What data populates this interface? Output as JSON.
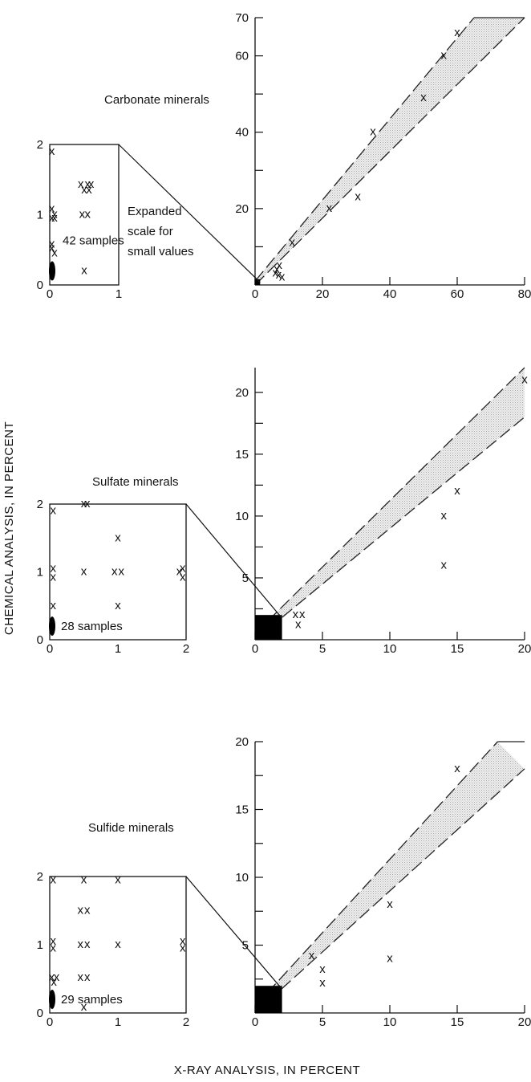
{
  "figure": {
    "xlabel": "X-RAY ANALYSIS, IN PERCENT",
    "ylabel": "CHEMICAL ANALYSIS, IN PERCENT"
  },
  "panels": [
    {
      "title": "Carbonate minerals",
      "expanded_note": [
        "Expanded",
        "scale for",
        "small values"
      ]
    },
    {
      "title": "Sulfate minerals"
    },
    {
      "title": "Sulfide minerals"
    }
  ],
  "chart_data": [
    {
      "type": "scatter",
      "title": "Carbonate minerals",
      "main": {
        "xlim": [
          0,
          80
        ],
        "ylim": [
          0,
          70
        ],
        "xticks": [
          0,
          20,
          40,
          60,
          80
        ],
        "yticks": [
          20,
          40,
          60
        ],
        "ylabels": [
          20,
          40,
          60,
          70
        ],
        "band_upper": [
          [
            0,
            1
          ],
          [
            65,
            70
          ]
        ],
        "band_lower": [
          [
            0,
            0
          ],
          [
            80,
            70
          ]
        ],
        "solid_region": [
          0,
          1.5
        ],
        "points": [
          [
            6,
            3
          ],
          [
            7,
            2.5
          ],
          [
            8,
            2
          ],
          [
            6.5,
            4
          ],
          [
            7.2,
            5
          ],
          [
            11,
            11
          ],
          [
            22,
            20
          ],
          [
            30.5,
            23
          ],
          [
            35,
            40
          ],
          [
            50,
            49
          ],
          [
            56,
            60
          ],
          [
            60,
            66
          ]
        ]
      },
      "inset": {
        "xlim": [
          0,
          1
        ],
        "ylim": [
          0,
          2
        ],
        "xticks": [
          0,
          1
        ],
        "yticks": [
          0,
          1,
          2
        ],
        "samples_label": "42 samples",
        "points": [
          [
            0.03,
            1.9
          ],
          [
            0.03,
            1.08
          ],
          [
            0.07,
            1.0
          ],
          [
            0.03,
            0.95
          ],
          [
            0.07,
            0.95
          ],
          [
            0.03,
            0.58
          ],
          [
            0.03,
            0.52
          ],
          [
            0.07,
            0.45
          ],
          [
            0.45,
            1.43
          ],
          [
            0.55,
            1.43
          ],
          [
            0.6,
            1.43
          ],
          [
            0.5,
            1.35
          ],
          [
            0.57,
            1.35
          ],
          [
            0.47,
            1.0
          ],
          [
            0.55,
            1.0
          ],
          [
            0.5,
            0.2
          ]
        ]
      }
    },
    {
      "type": "scatter",
      "title": "Sulfate minerals",
      "main": {
        "xlim": [
          0,
          20
        ],
        "ylim": [
          0,
          22
        ],
        "xticks": [
          0,
          5,
          10,
          15,
          20
        ],
        "yticks": [
          5,
          10,
          15,
          20
        ],
        "band_upper": [
          [
            0,
            0.5
          ],
          [
            20,
            22
          ]
        ],
        "band_lower": [
          [
            0,
            0
          ],
          [
            20,
            18
          ]
        ],
        "solid_region": [
          0,
          2
        ],
        "points": [
          [
            3,
            2
          ],
          [
            3.5,
            2
          ],
          [
            3.2,
            1.2
          ],
          [
            14,
            10
          ],
          [
            14,
            6
          ],
          [
            15,
            12
          ],
          [
            20,
            21
          ]
        ]
      },
      "inset": {
        "xlim": [
          0,
          2
        ],
        "ylim": [
          0,
          2
        ],
        "xticks": [
          0,
          1,
          2
        ],
        "yticks": [
          0,
          1,
          2
        ],
        "samples_label": "28 samples",
        "points": [
          [
            0.05,
            1.9
          ],
          [
            0.5,
            2.0
          ],
          [
            0.55,
            2.0
          ],
          [
            1.0,
            1.5
          ],
          [
            0.05,
            1.05
          ],
          [
            0.05,
            0.92
          ],
          [
            0.5,
            1.0
          ],
          [
            0.95,
            1.0
          ],
          [
            1.05,
            1.0
          ],
          [
            1.9,
            1.0
          ],
          [
            1.95,
            1.05
          ],
          [
            1.95,
            0.92
          ],
          [
            0.05,
            0.5
          ],
          [
            1.0,
            0.5
          ]
        ]
      }
    },
    {
      "type": "scatter",
      "title": "Sulfide minerals",
      "main": {
        "xlim": [
          0,
          20
        ],
        "ylim": [
          0,
          20
        ],
        "xticks": [
          0,
          5,
          10,
          15,
          20
        ],
        "yticks": [
          5,
          10,
          15,
          20
        ],
        "band_upper": [
          [
            0,
            0.5
          ],
          [
            18,
            20
          ]
        ],
        "band_lower": [
          [
            0,
            0
          ],
          [
            20,
            18
          ]
        ],
        "solid_region": [
          0,
          2
        ],
        "points": [
          [
            4.2,
            4.2
          ],
          [
            5,
            3.2
          ],
          [
            5,
            2.2
          ],
          [
            10,
            8
          ],
          [
            10,
            4
          ],
          [
            15,
            18
          ]
        ]
      },
      "inset": {
        "xlim": [
          0,
          2
        ],
        "ylim": [
          0,
          2
        ],
        "xticks": [
          0,
          1,
          2
        ],
        "yticks": [
          0,
          1,
          2
        ],
        "samples_label": "29 samples",
        "points": [
          [
            0.05,
            1.95
          ],
          [
            0.5,
            1.95
          ],
          [
            1.0,
            1.95
          ],
          [
            0.45,
            1.5
          ],
          [
            0.55,
            1.5
          ],
          [
            0.05,
            1.05
          ],
          [
            0.05,
            0.95
          ],
          [
            0.45,
            1.0
          ],
          [
            0.55,
            1.0
          ],
          [
            1.0,
            1.0
          ],
          [
            1.95,
            1.05
          ],
          [
            1.95,
            0.95
          ],
          [
            0.03,
            0.52
          ],
          [
            0.1,
            0.52
          ],
          [
            0.06,
            0.45
          ],
          [
            0.45,
            0.52
          ],
          [
            0.55,
            0.52
          ],
          [
            0.5,
            0.08
          ]
        ]
      }
    }
  ]
}
